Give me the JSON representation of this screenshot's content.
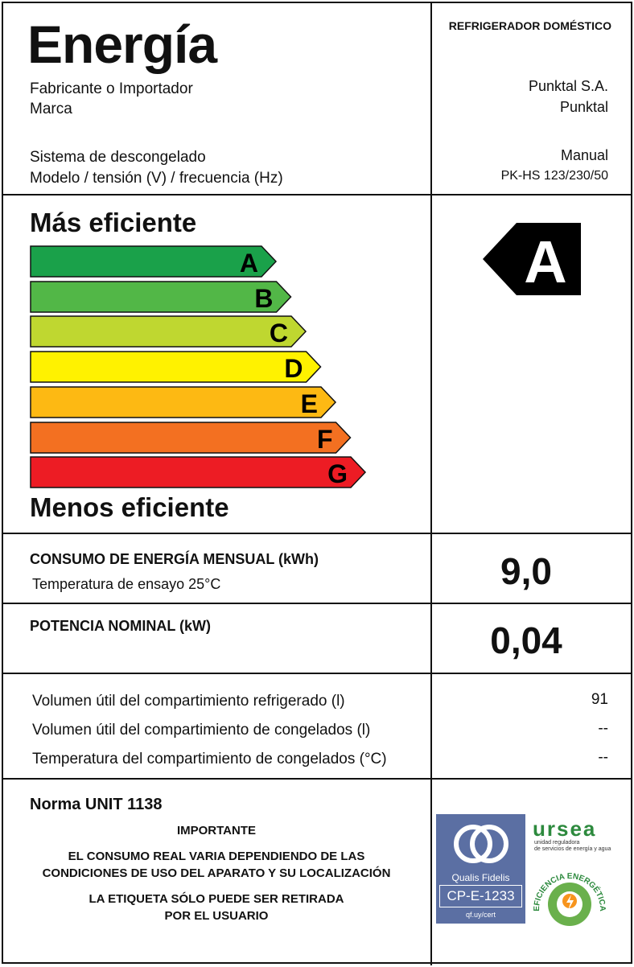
{
  "header": {
    "title": "Energía",
    "appliance_type": "REFRIGERADOR DOMÉSTICO"
  },
  "info": {
    "manufacturer_label": "Fabricante o Importador",
    "manufacturer_value": "Punktal S.A.",
    "brand_label": "Marca",
    "brand_value": "Punktal",
    "defrost_label": "Sistema de descongelado",
    "defrost_value": "Manual",
    "model_label": "Modelo / tensión (V) / frecuencia (Hz)",
    "model_value": "PK-HS 123/230/50"
  },
  "scale": {
    "top_label": "Más eficiente",
    "bottom_label": "Menos eficiente",
    "classes": [
      {
        "letter": "A",
        "color": "#1aa14a"
      },
      {
        "letter": "B",
        "color": "#52b747"
      },
      {
        "letter": "C",
        "color": "#bfd730"
      },
      {
        "letter": "D",
        "color": "#fff200"
      },
      {
        "letter": "E",
        "color": "#fdb913"
      },
      {
        "letter": "F",
        "color": "#f37021"
      },
      {
        "letter": "G",
        "color": "#ed1c24"
      }
    ],
    "rating": "A",
    "rating_color": "#000000"
  },
  "consumption": {
    "label": "CONSUMO DE ENERGÍA MENSUAL (kWh)",
    "sublabel": "Temperatura de ensayo 25°C",
    "value": "9,0"
  },
  "power": {
    "label": "POTENCIA NOMINAL (kW)",
    "value": "0,04"
  },
  "volumes": [
    {
      "label": "Volumen útil del compartimiento refrigerado (l)",
      "value": "91"
    },
    {
      "label": "Volumen útil del compartimiento de congelados (l)",
      "value": "--"
    },
    {
      "label": "Temperatura del compartimiento de congelados (°C)",
      "value": "--"
    }
  ],
  "footer": {
    "norm": "Norma UNIT 1138",
    "important": "IMPORTANTE",
    "notice1_line1": "EL CONSUMO REAL VARIA DEPENDIENDO DE LAS",
    "notice1_line2": "CONDICIONES DE USO DEL APARATO Y SU LOCALIZACIÓN",
    "notice2_line1": "LA ETIQUETA SÓLO PUEDE SER RETIRADA",
    "notice2_line2": "POR EL USUARIO"
  },
  "logos": {
    "qualis_name": "Qualis Fidelis",
    "qualis_code": "CP-E-1233",
    "qualis_url": "qf.uy/cert",
    "qualis_color": "#5b6fa3",
    "ursea_name": "ursea",
    "ursea_sub_line1": "unidad reguladora",
    "ursea_sub_line2": "de servicios de energía y agua",
    "efficiency_seal_text": "EFICIENCIA ENERGÉTICA",
    "ursea_color": "#2d8a3e",
    "seal_color": "#f7941d"
  }
}
